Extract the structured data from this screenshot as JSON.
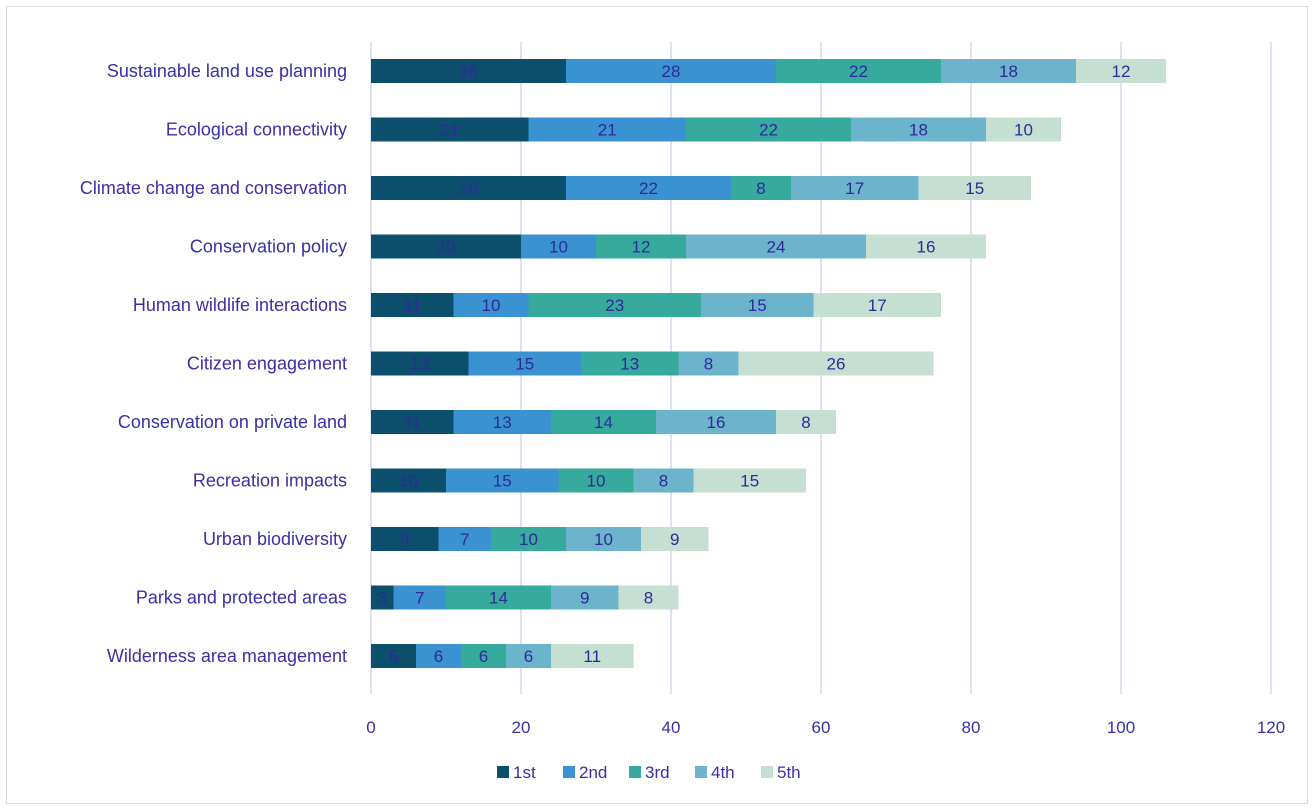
{
  "chart_data": {
    "type": "bar",
    "orientation": "horizontal",
    "stacked": true,
    "categories": [
      "Sustainable land use planning",
      "Ecological connectivity",
      "Climate change and conservation",
      "Conservation policy",
      "Human wildlife interactions",
      "Citizen engagement",
      "Conservation on private land",
      "Recreation impacts",
      "Urban biodiversity",
      "Parks and protected areas",
      "Wilderness area management"
    ],
    "series": [
      {
        "name": "1st",
        "color": "#0b4f6c",
        "values": [
          26,
          21,
          26,
          20,
          11,
          13,
          11,
          10,
          9,
          3,
          6
        ]
      },
      {
        "name": "2nd",
        "color": "#3a92d0",
        "values": [
          28,
          21,
          22,
          10,
          10,
          15,
          13,
          15,
          7,
          7,
          6
        ]
      },
      {
        "name": "3rd",
        "color": "#36aa9c",
        "values": [
          22,
          22,
          8,
          12,
          23,
          13,
          14,
          10,
          10,
          14,
          6
        ]
      },
      {
        "name": "4th",
        "color": "#6cb3cc",
        "values": [
          18,
          18,
          17,
          24,
          15,
          8,
          16,
          8,
          10,
          9,
          6
        ]
      },
      {
        "name": "5th",
        "color": "#c5dfd2",
        "values": [
          12,
          10,
          15,
          16,
          17,
          26,
          8,
          15,
          9,
          8,
          11
        ]
      }
    ],
    "xlim": [
      0,
      120
    ],
    "xticks": [
      0,
      20,
      40,
      60,
      80,
      100,
      120
    ],
    "grid": true,
    "legend_position": "bottom",
    "data_labels": true
  }
}
